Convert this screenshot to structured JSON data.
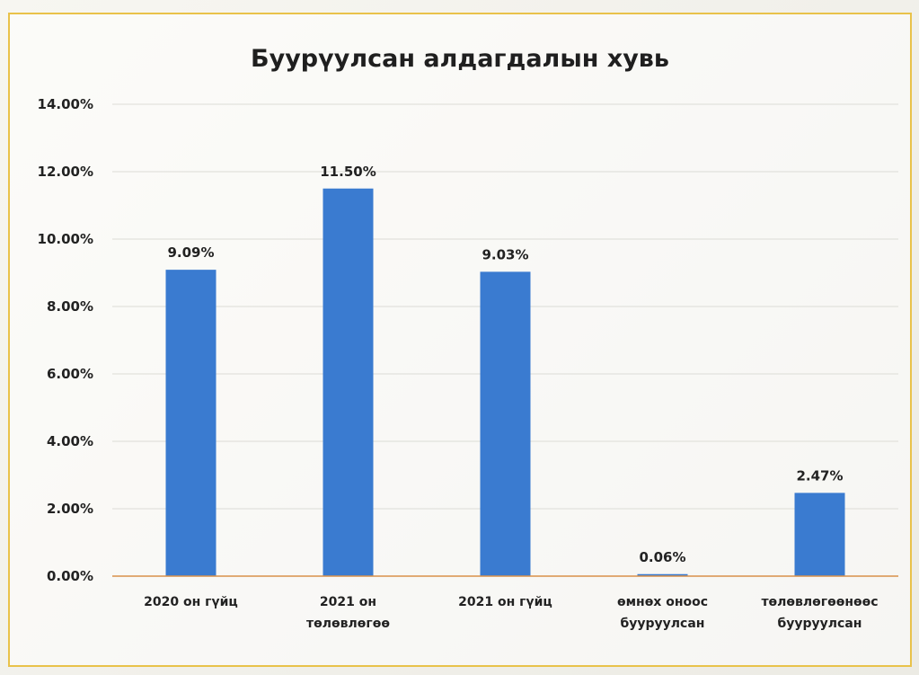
{
  "chart_data": {
    "type": "bar",
    "title": "Буурүулсан алдагдалын хувь",
    "categories": [
      [
        "2020 он гүйц"
      ],
      [
        "2021 он",
        "төлөвлөгөө"
      ],
      [
        "2021 он гүйц"
      ],
      [
        "өмнөх оноос",
        "бууруулсан"
      ],
      [
        "төлөвлөгөөнөөс",
        "бууруулсан"
      ]
    ],
    "values": [
      9.09,
      11.5,
      9.03,
      0.06,
      2.47
    ],
    "data_labels": [
      "9.09%",
      "11.50%",
      "9.03%",
      "0.06%",
      "2.47%"
    ],
    "ytick_labels": [
      "0.00%",
      "2.00%",
      "4.00%",
      "6.00%",
      "8.00%",
      "10.00%",
      "12.00%",
      "14.00%"
    ],
    "ylim": [
      0,
      14
    ],
    "ystep": 2,
    "grid": true,
    "legend": "none",
    "colors": {
      "bar": "#3a7bd0",
      "axis": "#d9914a",
      "grid": "#dcdcd6",
      "frame": "#e9c24a"
    }
  }
}
